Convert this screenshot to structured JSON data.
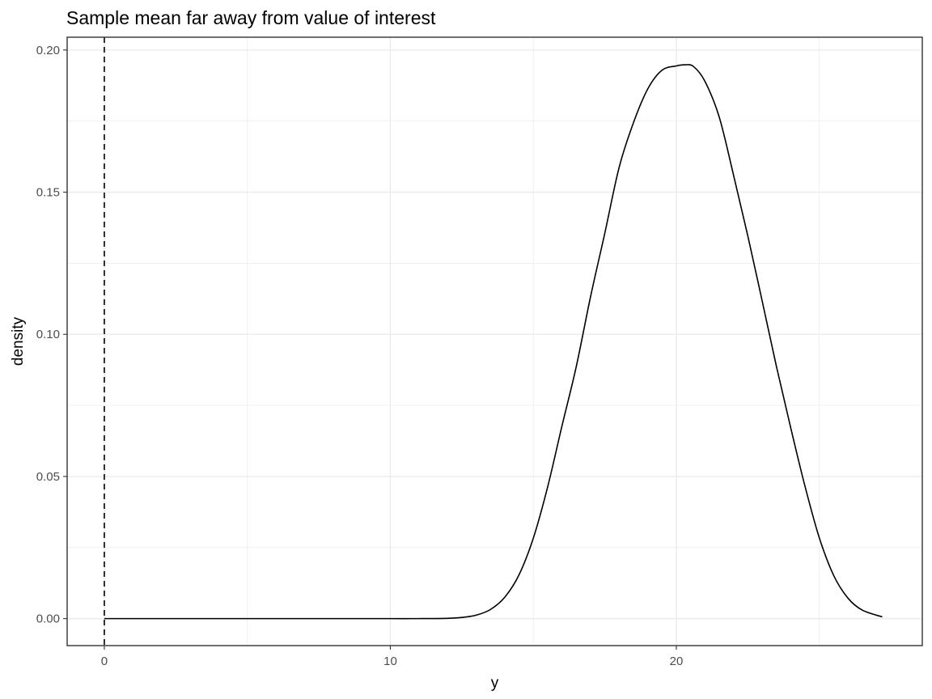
{
  "chart_data": {
    "type": "line",
    "title": "Sample mean far away from value of interest",
    "xlabel": "y",
    "ylabel": "density",
    "xlim": [
      -1.3,
      28.6
    ],
    "ylim": [
      -0.0095,
      0.2045
    ],
    "x_ticks": [
      0,
      10,
      20
    ],
    "x_tick_labels": [
      "0",
      "10",
      "20"
    ],
    "y_ticks": [
      0.0,
      0.05,
      0.1,
      0.15,
      0.2
    ],
    "y_tick_labels": [
      "0.00",
      "0.05",
      "0.10",
      "0.15",
      "0.20"
    ],
    "grid": true,
    "legend": "none",
    "reference_line": {
      "orientation": "vertical",
      "x": 0,
      "style": "dashed",
      "color": "#000000"
    },
    "series": [
      {
        "color": "#000000",
        "x": [
          0,
          1,
          2,
          3,
          4,
          5,
          6,
          7,
          8,
          9,
          10,
          11,
          12,
          12.5,
          13,
          13.5,
          14,
          14.5,
          15,
          15.5,
          16,
          16.5,
          17,
          17.5,
          18,
          18.5,
          19,
          19.5,
          20,
          20.3,
          20.6,
          21,
          21.5,
          22,
          22.5,
          23,
          23.5,
          24,
          24.5,
          25,
          25.5,
          26,
          26.5,
          27.2
        ],
        "y": [
          0,
          0,
          0,
          0,
          0,
          0,
          0,
          0,
          0,
          0,
          0,
          0,
          0.0001,
          0.0004,
          0.0012,
          0.0032,
          0.0075,
          0.0154,
          0.0283,
          0.0463,
          0.0677,
          0.0886,
          0.1132,
          0.1356,
          0.1587,
          0.1744,
          0.1863,
          0.1929,
          0.1944,
          0.1948,
          0.1942,
          0.189,
          0.1764,
          0.156,
          0.1346,
          0.1118,
          0.0887,
          0.0671,
          0.0465,
          0.0284,
          0.0152,
          0.0072,
          0.003,
          0.0006
        ]
      }
    ]
  },
  "colors": {
    "background": "#ffffff",
    "panel_border": "#333333",
    "grid": "#ebebeb",
    "line": "#000000",
    "tick_text": "#4d4d4d"
  }
}
